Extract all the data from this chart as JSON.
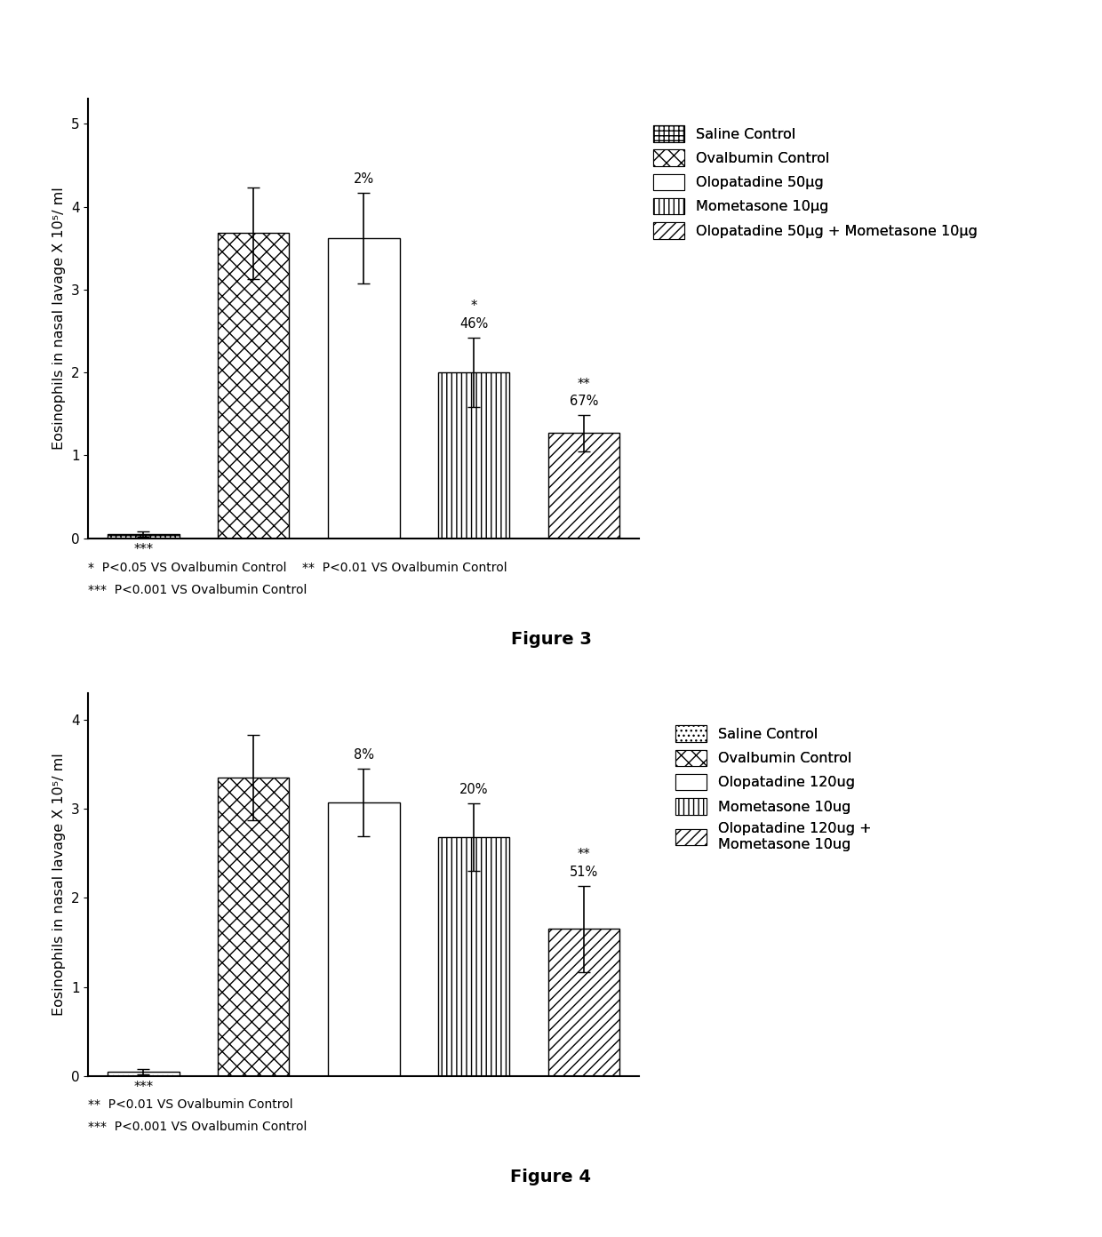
{
  "fig3": {
    "bars": [
      0.05,
      3.68,
      3.62,
      2.0,
      1.27
    ],
    "errors": [
      0.03,
      0.55,
      0.55,
      0.42,
      0.22
    ],
    "pct_labels": [
      "",
      "",
      "2%",
      "46%",
      "67%"
    ],
    "sig_labels": [
      "***",
      "",
      "",
      "*",
      "**"
    ],
    "ylim": [
      0,
      5.3
    ],
    "yticks": [
      0,
      1,
      2,
      3,
      4,
      5
    ],
    "ylabel": "Eosinophils in nasal lavage X 10⁵/ ml",
    "legend_labels": [
      "Saline Control",
      "Ovalbumin Control",
      "Olopatadine 50μg",
      "Mometasone 10μg",
      "Olopatadine 50μg + Mometasone 10μg"
    ],
    "footnote1": "*  P<0.05 VS Ovalbumin Control    **  P<0.01 VS Ovalbumin Control",
    "footnote2": "***  P<0.001 VS Ovalbumin Control",
    "figure_label": "Figure 3"
  },
  "fig4": {
    "bars": [
      0.05,
      3.35,
      3.07,
      2.68,
      1.65
    ],
    "errors": [
      0.03,
      0.48,
      0.38,
      0.38,
      0.48
    ],
    "pct_labels": [
      "",
      "",
      "8%",
      "20%",
      "51%"
    ],
    "sig_labels": [
      "***",
      "",
      "",
      "",
      "**"
    ],
    "ylim": [
      0,
      4.3
    ],
    "yticks": [
      0,
      1,
      2,
      3,
      4
    ],
    "ylabel": "Eosinophils in nasal lavage X 10⁵/ ml",
    "legend_labels": [
      "Saline Control",
      "Ovalbumin Control",
      "Olopatadine 120ug",
      "Mometasone 10ug",
      "Olopatadine 120ug +\nMometasone 10ug"
    ],
    "footnote1": "**  P<0.01 VS Ovalbumin Control",
    "footnote2": "***  P<0.001 VS Ovalbumin Control",
    "figure_label": "Figure 4"
  }
}
